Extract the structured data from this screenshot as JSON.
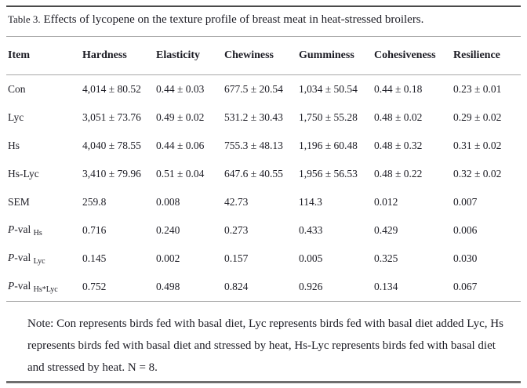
{
  "colors": {
    "text": "#1c1c24",
    "rule_dark": "#4a4a4a",
    "rule_medium": "#6e6e6e",
    "rule_light": "#a8a8a8",
    "background": "#ffffff"
  },
  "title": {
    "label": "Table 3.",
    "caption": "Effects of lycopene on the texture profile of breast meat in heat-stressed broilers."
  },
  "table": {
    "columns": [
      "Item",
      "Hardness",
      "Elasticity",
      "Chewiness",
      "Gumminess",
      "Cohesiveness",
      "Resilience"
    ],
    "rows": [
      {
        "item": "Con",
        "values": [
          "4,014 ± 80.52",
          "0.44 ± 0.03",
          "677.5 ± 20.54",
          "1,034 ± 50.54",
          "0.44 ± 0.18",
          "0.23 ± 0.01"
        ]
      },
      {
        "item": "Lyc",
        "values": [
          "3,051 ± 73.76",
          "0.49 ± 0.02",
          "531.2 ± 30.43",
          "1,750 ± 55.28",
          "0.48 ± 0.02",
          "0.29 ± 0.02"
        ]
      },
      {
        "item": "Hs",
        "values": [
          "4,040 ± 78.55",
          "0.44 ± 0.06",
          "755.3 ± 48.13",
          "1,196 ± 60.48",
          "0.48 ± 0.32",
          "0.31 ± 0.02"
        ]
      },
      {
        "item": "Hs-Lyc",
        "values": [
          "3,410 ± 79.96",
          "0.51 ± 0.04",
          "647.6 ± 40.55",
          "1,956 ± 56.53",
          "0.48 ± 0.22",
          "0.32 ± 0.02"
        ]
      },
      {
        "item": "SEM",
        "values": [
          "259.8",
          "0.008",
          "42.73",
          "114.3",
          "0.012",
          "0.007"
        ]
      },
      {
        "item": {
          "italic": "P",
          "text": "-val",
          "sub": "Hs"
        },
        "values": [
          "0.716",
          "0.240",
          "0.273",
          "0.433",
          "0.429",
          "0.006"
        ]
      },
      {
        "item": {
          "italic": "P",
          "text": "-val",
          "sub": "Lyc"
        },
        "values": [
          "0.145",
          "0.002",
          "0.157",
          "0.005",
          "0.325",
          "0.030"
        ]
      },
      {
        "item": {
          "italic": "P",
          "text": "-val",
          "sub": "Hs*Lyc"
        },
        "values": [
          "0.752",
          "0.498",
          "0.824",
          "0.926",
          "0.134",
          "0.067"
        ]
      }
    ]
  },
  "note": {
    "text": "Note: Con represents birds fed with basal diet, Lyc represents birds fed with basal diet added Lyc, Hs represents birds fed with basal diet and stressed by heat, Hs-Lyc represents birds fed with basal diet and stressed by heat. N = 8."
  }
}
